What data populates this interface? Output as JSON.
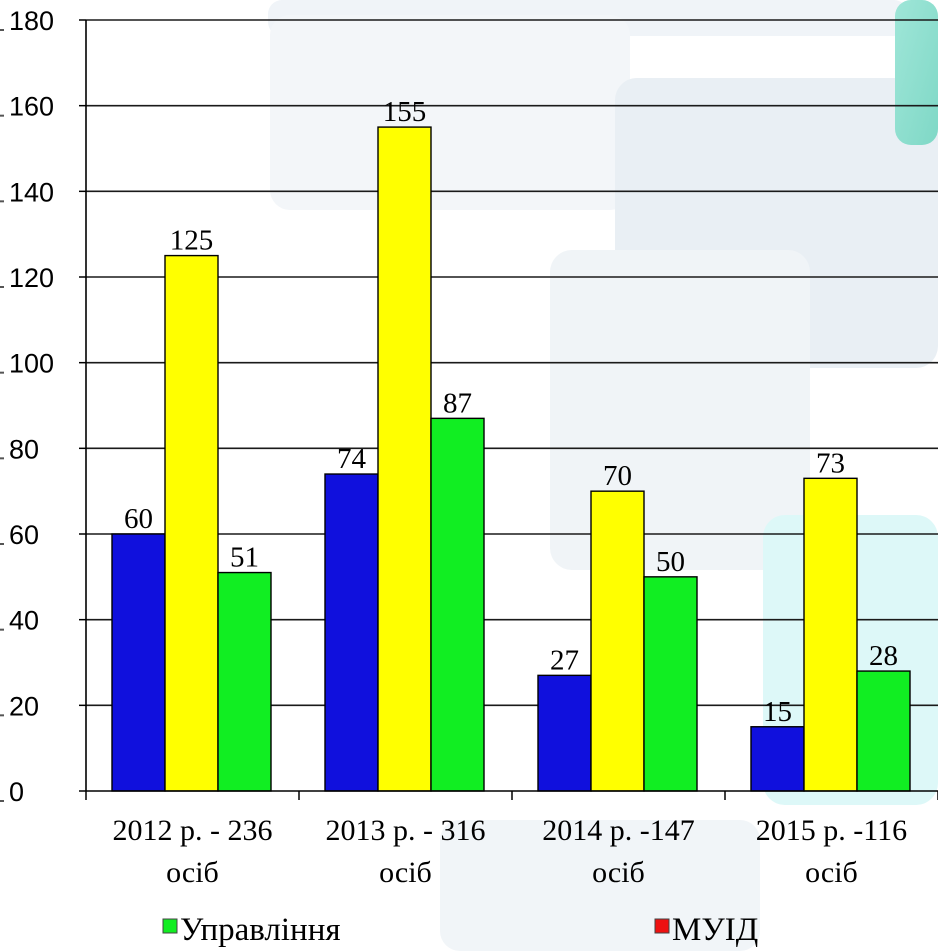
{
  "chart_data": {
    "type": "bar",
    "categories": [
      [
        "2012 р. - 236",
        "осіб"
      ],
      [
        "2013 р. - 316",
        "осіб"
      ],
      [
        "2014 р. -147",
        "осіб"
      ],
      [
        "2015 р. -116",
        "осіб"
      ]
    ],
    "series": [
      {
        "values": [
          60,
          74,
          27,
          15
        ],
        "color": "#1010dd"
      },
      {
        "values": [
          125,
          155,
          70,
          73
        ],
        "color": "#ffff00"
      },
      {
        "name": "Управління",
        "values": [
          51,
          87,
          50,
          28
        ],
        "color": "#11ee22"
      }
    ],
    "ylim": [
      0,
      180
    ],
    "yticks": [
      0,
      20,
      40,
      60,
      80,
      100,
      120,
      140,
      160,
      180
    ],
    "grid": true,
    "legend": {
      "position": "bottom",
      "entries": [
        {
          "label": "Управління",
          "color": "#11ee22"
        },
        {
          "label": "МУІД",
          "color": "#ee1111"
        }
      ]
    },
    "title": "",
    "xlabel": "",
    "ylabel": ""
  }
}
